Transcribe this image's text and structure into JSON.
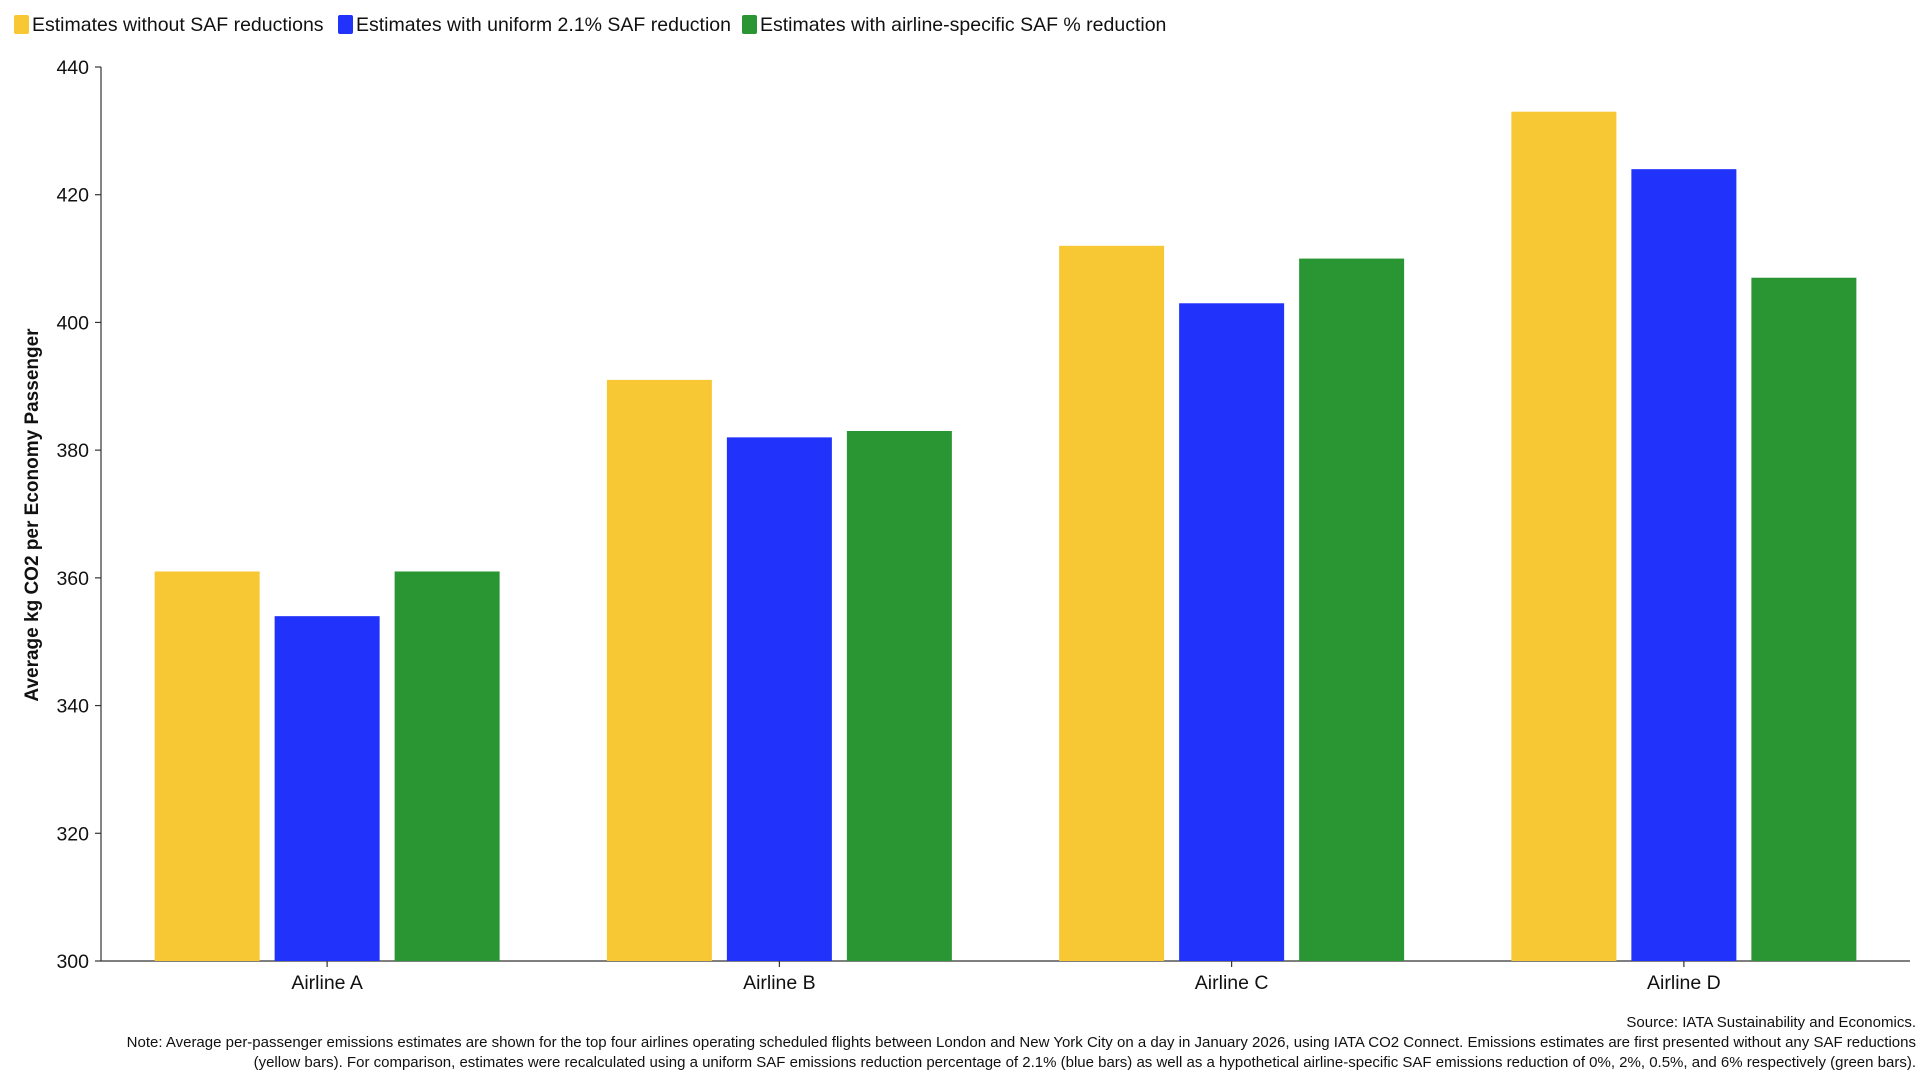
{
  "chart_data": {
    "type": "bar",
    "title": "",
    "xlabel": "",
    "ylabel": "Average kg CO2 per Economy Passenger",
    "ylim": [
      300,
      440
    ],
    "yticks": [
      300,
      320,
      340,
      360,
      380,
      400,
      420,
      440
    ],
    "categories": [
      "Airline A",
      "Airline B",
      "Airline C",
      "Airline D"
    ],
    "series": [
      {
        "name": "Estimates without SAF reductions",
        "color": "#F8C734",
        "values": [
          361,
          391,
          412,
          433
        ]
      },
      {
        "name": "Estimates with uniform 2.1% SAF reduction",
        "color": "#2132FA",
        "values": [
          354,
          382,
          403,
          424
        ]
      },
      {
        "name": "Estimates with airline-specific SAF % reduction",
        "color": "#2A9633",
        "values": [
          361,
          383,
          410,
          407
        ]
      }
    ],
    "legend_position": "top-left",
    "grid": false
  },
  "footer": {
    "source": "Source: IATA Sustainability and Economics.",
    "note_line1": "Note: Average per-passenger emissions estimates are shown for the top four airlines operating scheduled flights between London and New York City on a day in January 2026, using IATA CO2 Connect. Emissions estimates are first presented without any SAF reductions",
    "note_line2": "(yellow bars). For comparison, estimates were recalculated using a uniform SAF emissions reduction percentage of 2.1% (blue bars) as well as a hypothetical airline-specific SAF emissions reduction of 0%, 2%, 0.5%, and 6% respectively (green bars)."
  }
}
